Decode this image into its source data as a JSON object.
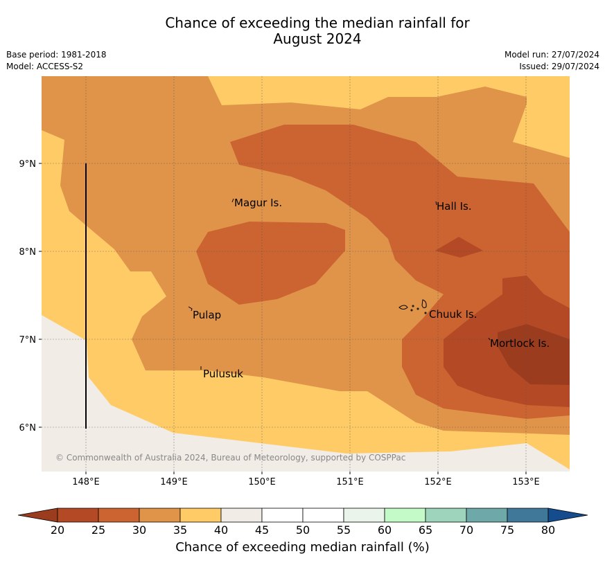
{
  "title": {
    "line1": "Chance of exceeding the median rainfall for",
    "line2": "August 2024"
  },
  "meta": {
    "base_period": "Base period: 1981-2018",
    "model": "Model: ACCESS-S2",
    "model_run": "Model run: 27/07/2024",
    "issued": "Issued: 29/07/2024"
  },
  "map": {
    "lon_ticks": [
      "148°E",
      "149°E",
      "150°E",
      "151°E",
      "152°E",
      "153°E"
    ],
    "lat_ticks": [
      "9°N",
      "8°N",
      "7°N",
      "6°N"
    ],
    "places": [
      "Magur Is.",
      "Hall Is.",
      "Pulap",
      "Chuuk Is.",
      "Mortlock Is.",
      "Pulusuk"
    ],
    "copyright": "© Commonwealth of Australia 2024, Bureau of Meteorology, supported by COSPPac"
  },
  "colorbar": {
    "ticks": [
      "20",
      "25",
      "30",
      "35",
      "40",
      "45",
      "50",
      "55",
      "60",
      "65",
      "70",
      "75",
      "80"
    ],
    "label": "Chance of exceeding median rainfall (%)",
    "colors": [
      "#9b3c1f",
      "#b34a25",
      "#cb6431",
      "#e0944a",
      "#fecb66",
      "#f1ece6",
      "#ffffff",
      "#ffffff",
      "#ebf4ea",
      "#c4f9c8",
      "#9ed4bb",
      "#6ea8a9",
      "#3f7898",
      "#154c8d"
    ]
  }
}
